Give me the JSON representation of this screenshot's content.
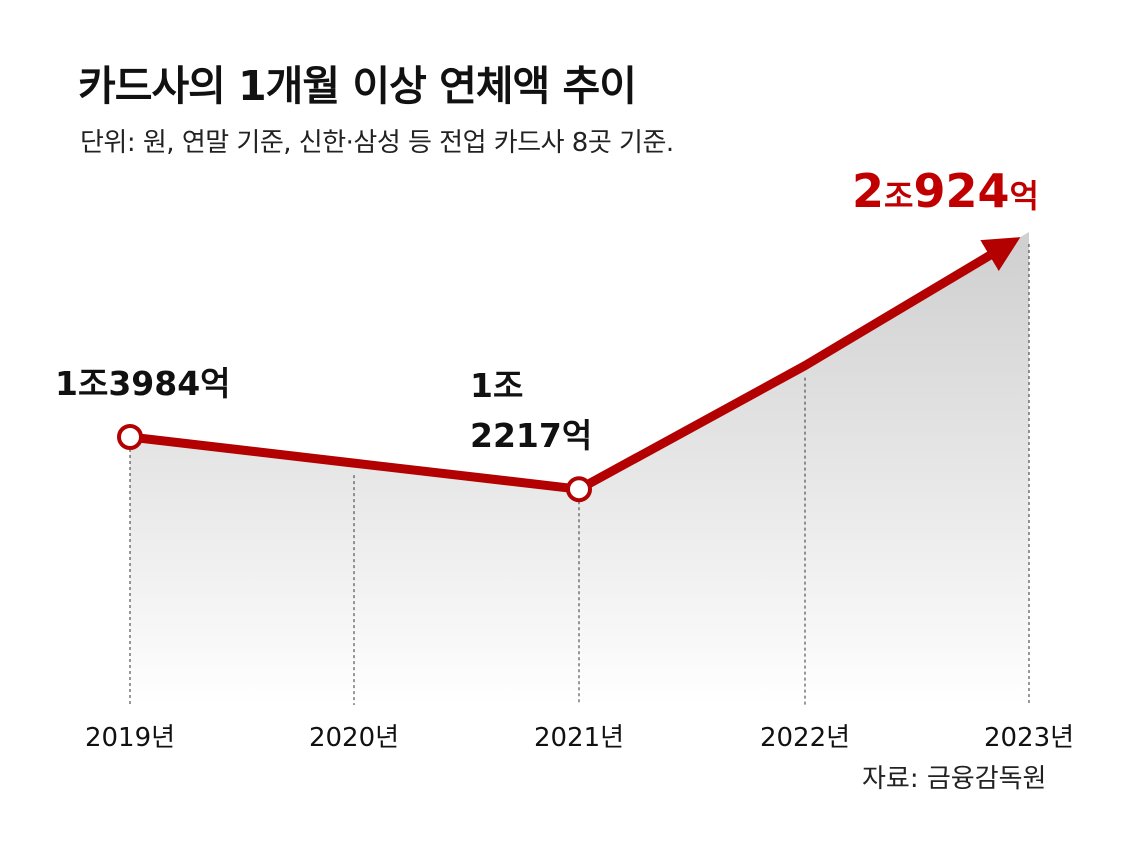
{
  "header": {
    "title": "카드사의 1개월 이상 연체액 추이",
    "subtitle": "단위: 원, 연말 기준, 신한·삼성 등 전업 카드사 8곳 기준."
  },
  "source": "자료: 금융감독원",
  "colors": {
    "line": "#b30000",
    "highlight": "#c00000",
    "fill_top": "#cfcfcf"
  },
  "chart_data": {
    "type": "area",
    "title": "카드사의 1개월 이상 연체액 추이",
    "subtitle": "단위: 원, 연말 기준, 신한·삼성 등 전업 카드사 8곳 기준.",
    "categories": [
      "2019년",
      "2020년",
      "2021년",
      "2022년",
      "2023년"
    ],
    "unit": "원",
    "series": [
      {
        "values": [
          13984,
          13100,
          12217,
          16400,
          20924
        ]
      }
    ],
    "value_unit": "억 원",
    "data_labels": [
      {
        "category": "2019년",
        "lines": [
          "1조3984억"
        ]
      },
      {
        "category": "2021년",
        "lines": [
          "1조",
          "2217억"
        ]
      },
      {
        "category": "2023년",
        "parts": [
          {
            "text": "2",
            "big": true
          },
          {
            "text": "조",
            "big": false
          },
          {
            "text": "924",
            "big": true
          },
          {
            "text": "억",
            "big": false
          }
        ]
      }
    ],
    "grid": false,
    "legend": "none",
    "xlabel": "",
    "ylabel": ""
  }
}
